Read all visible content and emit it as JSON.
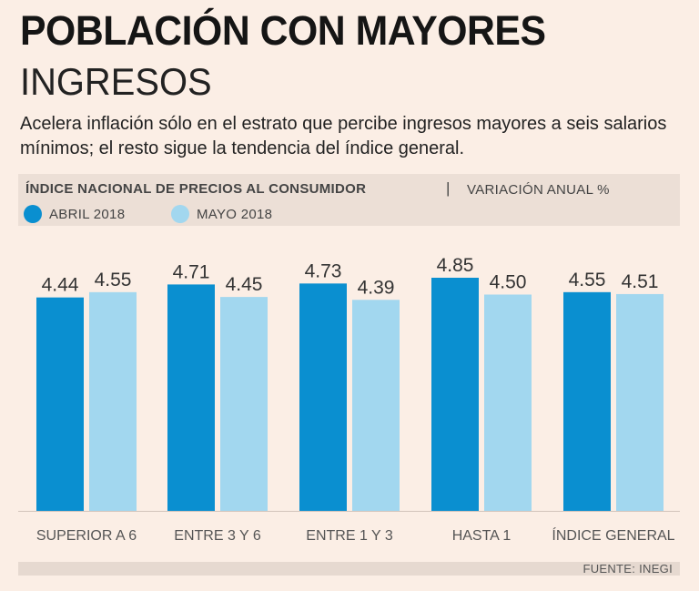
{
  "colors": {
    "april": "#0a8fd0",
    "may": "#a2d7ef",
    "axis": "#d2c4ba"
  },
  "chart_data": {
    "type": "bar",
    "title": "POBLACIÓN CON MAYORES",
    "subtitle": "INGRESOS",
    "description": "Acelera inflación sólo en el estrato que percibe ingresos mayores a seis salarios mínimos; el resto sigue la tendencia del índice general.",
    "panel_title": "ÍNDICE NACIONAL DE PRECIOS AL CONSUMIDOR",
    "separator": "|",
    "unit_label": "VARIACIÓN ANUAL %",
    "categories": [
      "SUPERIOR A 6",
      "ENTRE 3 Y 6",
      "ENTRE 1 Y 3",
      "HASTA 1",
      "ÍNDICE GENERAL"
    ],
    "series": [
      {
        "name": "ABRIL 2018",
        "values": [
          4.44,
          4.71,
          4.73,
          4.85,
          4.55
        ]
      },
      {
        "name": "MAYO 2018",
        "values": [
          4.55,
          4.45,
          4.39,
          4.5,
          4.51
        ]
      }
    ],
    "value_labels": [
      [
        "4.44",
        "4.71",
        "4.73",
        "4.85",
        "4.55"
      ],
      [
        "4.55",
        "4.45",
        "4.39",
        "4.50",
        "4.51"
      ]
    ],
    "ylim": [
      0,
      4.85
    ],
    "grid": false,
    "legend_position": "top-left",
    "source": "FUENTE: INEGI"
  }
}
